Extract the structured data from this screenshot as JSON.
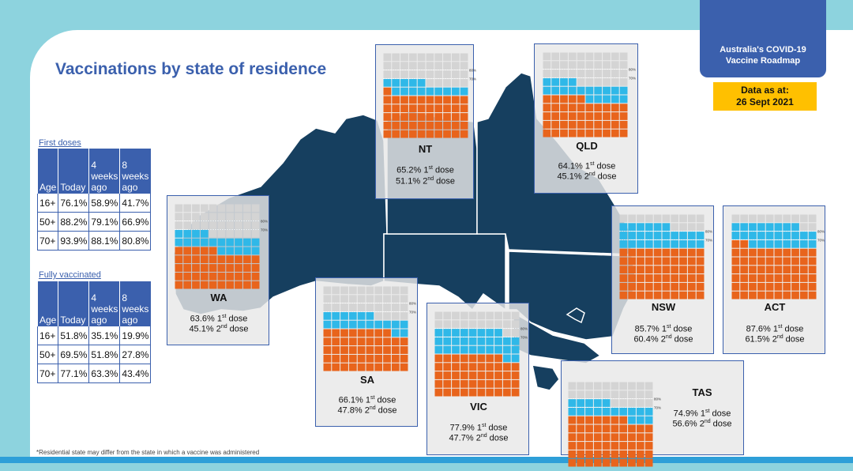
{
  "header": {
    "title": "Vaccinations by state of residence",
    "roadmap_line1": "Australia's COVID-19",
    "roadmap_line2": "Vaccine Roadmap",
    "data_line1": "Data as at:",
    "data_line2": "26 Sept 2021"
  },
  "tables": {
    "header_age": "Age",
    "header_today": "Today",
    "header_4w_1": "4",
    "header_4w_2": "weeks",
    "header_4w_3": "ago",
    "header_8w_1": "8",
    "header_8w_2": "weeks",
    "header_8w_3": "ago",
    "first": {
      "title": "First doses",
      "rows": [
        {
          "age": "16+",
          "today": "76.1%",
          "w4": "58.9%",
          "w8": "41.7%"
        },
        {
          "age": "50+",
          "today": "88.2%",
          "w4": "79.1%",
          "w8": "66.9%"
        },
        {
          "age": "70+",
          "today": "93.9%",
          "w4": "88.1%",
          "w8": "80.8%"
        }
      ]
    },
    "full": {
      "title": "Fully vaccinated",
      "rows": [
        {
          "age": "16+",
          "today": "51.8%",
          "w4": "35.1%",
          "w8": "19.9%"
        },
        {
          "age": "50+",
          "today": "69.5%",
          "w4": "51.8%",
          "w8": "27.8%"
        },
        {
          "age": "70+",
          "today": "77.1%",
          "w4": "63.3%",
          "w8": "43.4%"
        }
      ]
    }
  },
  "waffle_labels": {
    "l80": "80%",
    "l70": "70%"
  },
  "dose_suffix": {
    "first_sup": "st",
    "first_word": " dose",
    "second_sup": "nd",
    "second_word": " dose"
  },
  "states": {
    "nt": {
      "name": "NT",
      "first_pct": "65.2%",
      "second_pct": "51.1%",
      "first_value": 65.2,
      "second_value": 51.1
    },
    "qld": {
      "name": "QLD",
      "first_pct": "64.1%",
      "second_pct": "45.1%",
      "first_value": 64.1,
      "second_value": 45.1
    },
    "wa": {
      "name": "WA",
      "first_pct": "63.6%",
      "second_pct": "45.1%",
      "first_value": 63.6,
      "second_value": 45.1
    },
    "nsw": {
      "name": "NSW",
      "first_pct": "85.7%",
      "second_pct": "60.4%",
      "first_value": 85.7,
      "second_value": 60.4
    },
    "act": {
      "name": "ACT",
      "first_pct": "87.6%",
      "second_pct": "61.5%",
      "first_value": 87.6,
      "second_value": 61.5
    },
    "sa": {
      "name": "SA",
      "first_pct": "66.1%",
      "second_pct": "47.8%",
      "first_value": 66.1,
      "second_value": 47.8
    },
    "vic": {
      "name": "VIC",
      "first_pct": "77.9%",
      "second_pct": "47.7%",
      "first_value": 77.9,
      "second_value": 47.7
    },
    "tas": {
      "name": "TAS",
      "first_pct": "74.9%",
      "second_pct": "56.6%",
      "first_value": 74.9,
      "second_value": 56.6
    }
  },
  "colors": {
    "map": "#163f5f",
    "brand": "#3b60ad",
    "first_dose": "#2fb8e8",
    "second_dose": "#e8641c",
    "unvaccinated": "#d4d4d4",
    "highlight": "#ffc000"
  },
  "footnote": "*Residential state may differ from the state in which a vaccine was administered"
}
